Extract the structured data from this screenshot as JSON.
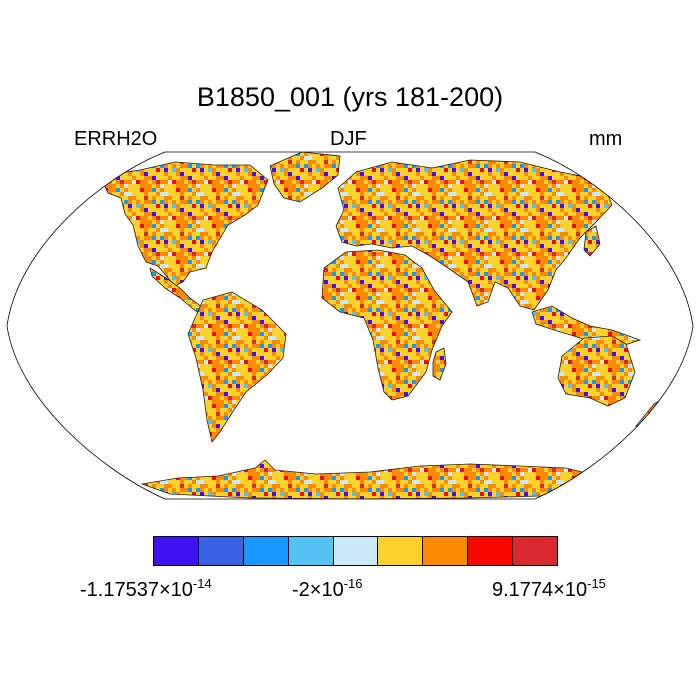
{
  "map": {
    "title": "B1850_001 (yrs 181-200)",
    "left_label": "ERRH2O",
    "center_label": "DJF",
    "right_label": "mm",
    "projection": "robinson",
    "field": "ERRH2O"
  },
  "colorbar": {
    "colors": [
      "#3f12f4",
      "#3962e4",
      "#1897fd",
      "#53c3f6",
      "#cde8f7",
      "#fed22a",
      "#fe8902",
      "#fc0700",
      "#d7292e"
    ],
    "labels": {
      "min_mantissa": "-1.17537×10",
      "min_exp": "-14",
      "mid_mantissa": "-2×10",
      "mid_exp": "-16",
      "max_mantissa": "9.1774×10",
      "max_exp": "-15"
    }
  }
}
